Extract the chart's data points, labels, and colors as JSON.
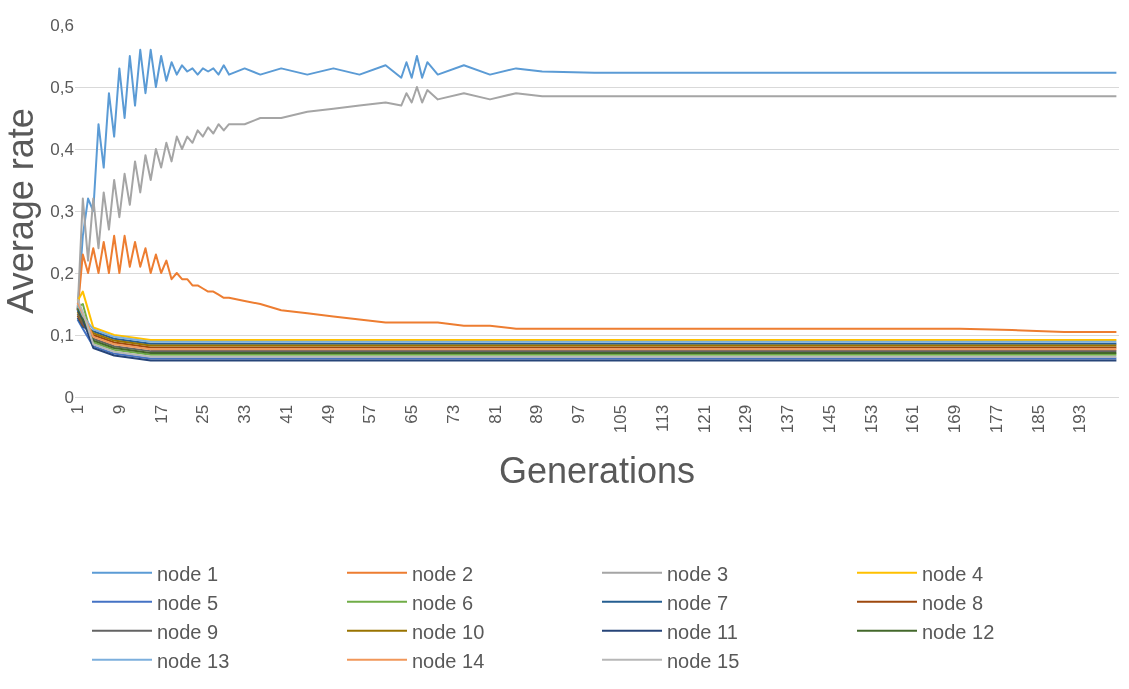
{
  "chart_data": {
    "type": "line",
    "xlabel": "Generations",
    "ylabel": "Average rate",
    "xlim": [
      0.5,
      200.5
    ],
    "xticks": [
      1,
      9,
      17,
      25,
      33,
      41,
      49,
      57,
      65,
      73,
      81,
      89,
      97,
      105,
      113,
      121,
      129,
      137,
      145,
      153,
      161,
      169,
      177,
      185,
      193
    ],
    "ylim": [
      0,
      0.6
    ],
    "yticks": [
      0,
      {
        "value": 0.1,
        "label": "0,1"
      },
      {
        "value": 0.2,
        "label": "0,2"
      },
      {
        "value": 0.3,
        "label": "0,3"
      },
      {
        "value": 0.4,
        "label": "0,4"
      },
      {
        "value": 0.5,
        "label": "0,5"
      },
      {
        "value": 0.6,
        "label": "0,6"
      }
    ],
    "grid": "y",
    "legend": "bottom",
    "marker": "none",
    "line_style": "solid",
    "series": [
      {
        "name": "node 1",
        "color": "#5b9bd5",
        "x": [
          1,
          2,
          3,
          4,
          5,
          6,
          7,
          8,
          9,
          10,
          11,
          12,
          13,
          14,
          15,
          16,
          17,
          18,
          19,
          20,
          21,
          22,
          23,
          24,
          25,
          26,
          27,
          28,
          29,
          30,
          33,
          36,
          40,
          45,
          50,
          55,
          60,
          63,
          64,
          65,
          66,
          67,
          68,
          70,
          75,
          80,
          85,
          90,
          100,
          110,
          120,
          130,
          140,
          150,
          160,
          170,
          180,
          190,
          200
        ],
        "values": [
          0.14,
          0.26,
          0.32,
          0.3,
          0.44,
          0.37,
          0.49,
          0.42,
          0.53,
          0.45,
          0.55,
          0.47,
          0.56,
          0.49,
          0.56,
          0.5,
          0.55,
          0.51,
          0.54,
          0.52,
          0.535,
          0.525,
          0.53,
          0.52,
          0.53,
          0.525,
          0.53,
          0.52,
          0.535,
          0.52,
          0.53,
          0.52,
          0.53,
          0.52,
          0.53,
          0.52,
          0.535,
          0.515,
          0.54,
          0.515,
          0.55,
          0.515,
          0.54,
          0.52,
          0.535,
          0.52,
          0.53,
          0.525,
          0.523,
          0.523,
          0.523,
          0.523,
          0.523,
          0.523,
          0.523,
          0.523,
          0.523,
          0.523,
          0.523
        ]
      },
      {
        "name": "node 2",
        "color": "#ed7d31",
        "x": [
          1,
          2,
          3,
          4,
          5,
          6,
          7,
          8,
          9,
          10,
          11,
          12,
          13,
          14,
          15,
          16,
          17,
          18,
          19,
          20,
          21,
          22,
          23,
          24,
          25,
          26,
          27,
          28,
          29,
          30,
          33,
          36,
          40,
          45,
          50,
          55,
          60,
          63,
          64,
          65,
          66,
          67,
          68,
          70,
          75,
          80,
          85,
          90,
          100,
          110,
          120,
          130,
          140,
          150,
          160,
          170,
          180,
          190,
          200
        ],
        "values": [
          0.14,
          0.23,
          0.2,
          0.24,
          0.2,
          0.25,
          0.2,
          0.26,
          0.2,
          0.26,
          0.21,
          0.25,
          0.21,
          0.24,
          0.2,
          0.23,
          0.2,
          0.22,
          0.19,
          0.2,
          0.19,
          0.19,
          0.18,
          0.18,
          0.175,
          0.17,
          0.17,
          0.165,
          0.16,
          0.16,
          0.155,
          0.15,
          0.14,
          0.135,
          0.13,
          0.125,
          0.12,
          0.12,
          0.12,
          0.12,
          0.12,
          0.12,
          0.12,
          0.12,
          0.115,
          0.115,
          0.11,
          0.11,
          0.11,
          0.11,
          0.11,
          0.11,
          0.11,
          0.11,
          0.11,
          0.11,
          0.108,
          0.105,
          0.105
        ]
      },
      {
        "name": "node 3",
        "color": "#a5a5a5",
        "x": [
          1,
          2,
          3,
          4,
          5,
          6,
          7,
          8,
          9,
          10,
          11,
          12,
          13,
          14,
          15,
          16,
          17,
          18,
          19,
          20,
          21,
          22,
          23,
          24,
          25,
          26,
          27,
          28,
          29,
          30,
          33,
          36,
          40,
          45,
          50,
          55,
          60,
          63,
          64,
          65,
          66,
          67,
          68,
          70,
          75,
          80,
          85,
          90,
          100,
          110,
          120,
          130,
          140,
          150,
          160,
          170,
          180,
          190,
          200
        ],
        "values": [
          0.14,
          0.32,
          0.22,
          0.32,
          0.24,
          0.33,
          0.27,
          0.35,
          0.29,
          0.36,
          0.31,
          0.38,
          0.33,
          0.39,
          0.35,
          0.4,
          0.37,
          0.41,
          0.38,
          0.42,
          0.4,
          0.42,
          0.41,
          0.43,
          0.42,
          0.435,
          0.425,
          0.44,
          0.43,
          0.44,
          0.44,
          0.45,
          0.45,
          0.46,
          0.465,
          0.47,
          0.475,
          0.47,
          0.49,
          0.475,
          0.5,
          0.475,
          0.495,
          0.48,
          0.49,
          0.48,
          0.49,
          0.485,
          0.485,
          0.485,
          0.485,
          0.485,
          0.485,
          0.485,
          0.485,
          0.485,
          0.485,
          0.485,
          0.485
        ]
      },
      {
        "name": "node 4",
        "color": "#ffc000",
        "x": [
          1,
          2,
          4,
          8,
          15,
          30,
          60,
          100,
          150,
          200
        ],
        "values": [
          0.155,
          0.17,
          0.112,
          0.1,
          0.092,
          0.092,
          0.092,
          0.092,
          0.092,
          0.092
        ]
      },
      {
        "name": "node 5",
        "color": "#4472c4",
        "x": [
          1,
          2,
          4,
          8,
          15,
          30,
          60,
          100,
          150,
          200
        ],
        "values": [
          0.125,
          0.11,
          0.082,
          0.07,
          0.062,
          0.062,
          0.062,
          0.062,
          0.062,
          0.062
        ]
      },
      {
        "name": "node 6",
        "color": "#70ad47",
        "x": [
          1,
          2,
          4,
          8,
          15,
          30,
          60,
          100,
          150,
          200
        ],
        "values": [
          0.145,
          0.15,
          0.088,
          0.076,
          0.068,
          0.068,
          0.068,
          0.068,
          0.068,
          0.068
        ]
      },
      {
        "name": "node 7",
        "color": "#255e91",
        "x": [
          1,
          2,
          4,
          8,
          15,
          30,
          60,
          100,
          150,
          200
        ],
        "values": [
          0.128,
          0.113,
          0.106,
          0.094,
          0.086,
          0.086,
          0.086,
          0.086,
          0.086,
          0.086
        ]
      },
      {
        "name": "node 8",
        "color": "#9e480e",
        "x": [
          1,
          2,
          4,
          8,
          15,
          30,
          60,
          100,
          150,
          200
        ],
        "values": [
          0.131,
          0.116,
          0.1,
          0.088,
          0.08,
          0.08,
          0.08,
          0.08,
          0.08,
          0.08
        ]
      },
      {
        "name": "node 9",
        "color": "#636363",
        "x": [
          1,
          2,
          4,
          8,
          15,
          30,
          60,
          100,
          150,
          200
        ],
        "values": [
          0.134,
          0.119,
          0.094,
          0.082,
          0.074,
          0.074,
          0.074,
          0.074,
          0.074,
          0.074
        ]
      },
      {
        "name": "node 10",
        "color": "#997300",
        "x": [
          1,
          2,
          4,
          8,
          15,
          30,
          60,
          100,
          150,
          200
        ],
        "values": [
          0.137,
          0.122,
          0.103,
          0.091,
          0.083,
          0.083,
          0.083,
          0.083,
          0.083,
          0.083
        ]
      },
      {
        "name": "node 11",
        "color": "#264478",
        "x": [
          1,
          2,
          4,
          8,
          15,
          30,
          60,
          100,
          150,
          200
        ],
        "values": [
          0.14,
          0.125,
          0.079,
          0.067,
          0.059,
          0.059,
          0.059,
          0.059,
          0.059,
          0.059
        ]
      },
      {
        "name": "node 12",
        "color": "#43682b",
        "x": [
          1,
          2,
          4,
          8,
          15,
          30,
          60,
          100,
          150,
          200
        ],
        "values": [
          0.143,
          0.128,
          0.091,
          0.079,
          0.071,
          0.071,
          0.071,
          0.071,
          0.071,
          0.071
        ]
      },
      {
        "name": "node 13",
        "color": "#7cafdd",
        "x": [
          1,
          2,
          4,
          8,
          15,
          30,
          60,
          100,
          150,
          200
        ],
        "values": [
          0.149,
          0.131,
          0.109,
          0.097,
          0.089,
          0.089,
          0.089,
          0.089,
          0.089,
          0.089
        ]
      },
      {
        "name": "node 14",
        "color": "#f1975a",
        "x": [
          1,
          2,
          4,
          8,
          15,
          30,
          60,
          100,
          150,
          200
        ],
        "values": [
          0.152,
          0.134,
          0.097,
          0.085,
          0.077,
          0.077,
          0.077,
          0.077,
          0.077,
          0.077
        ]
      },
      {
        "name": "node 15",
        "color": "#b7b7b7",
        "x": [
          1,
          2,
          4,
          8,
          15,
          30,
          60,
          100,
          150,
          200
        ],
        "values": [
          0.158,
          0.137,
          0.085,
          0.073,
          0.065,
          0.065,
          0.065,
          0.065,
          0.065,
          0.065
        ]
      }
    ]
  }
}
